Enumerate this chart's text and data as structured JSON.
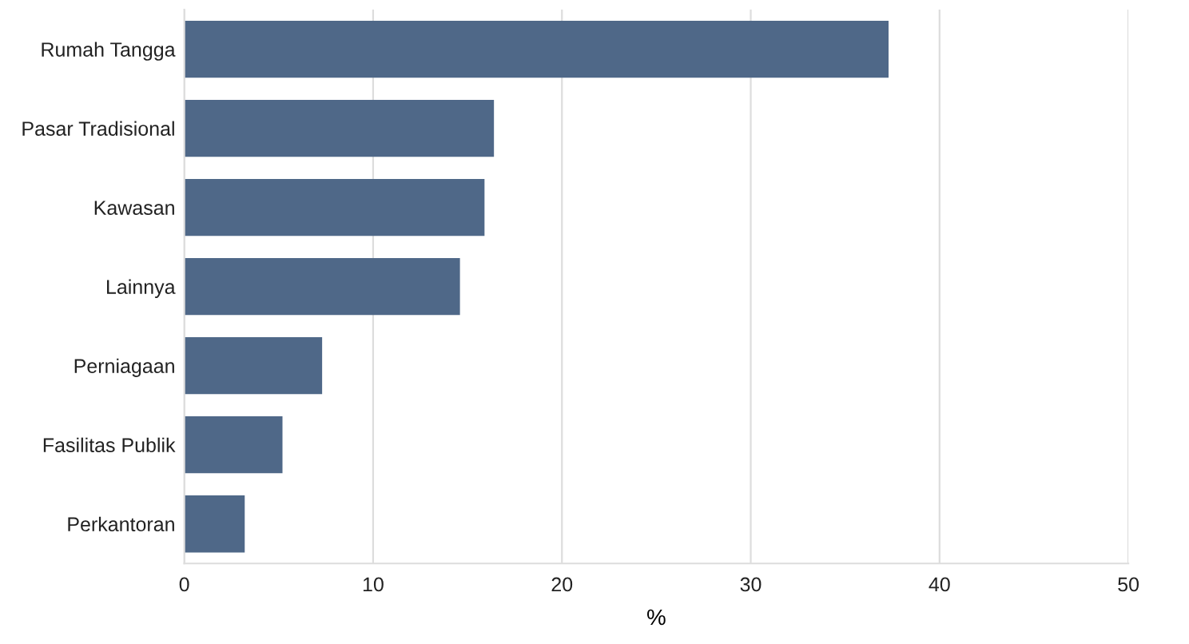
{
  "chart_data": {
    "type": "bar",
    "orientation": "horizontal",
    "xlabel": "%",
    "categories": [
      "Rumah Tangga",
      "Pasar Tradisional",
      "Kawasan",
      "Lainnya",
      "Perniagaan",
      "Fasilitas Publik",
      "Perkantoran"
    ],
    "values": [
      37.3,
      16.4,
      15.9,
      14.6,
      7.3,
      5.2,
      3.2
    ],
    "color": "#4f6888",
    "xlim": [
      0,
      50
    ],
    "xticks": [
      0,
      10,
      20,
      30,
      40,
      50
    ],
    "grid": "x"
  }
}
